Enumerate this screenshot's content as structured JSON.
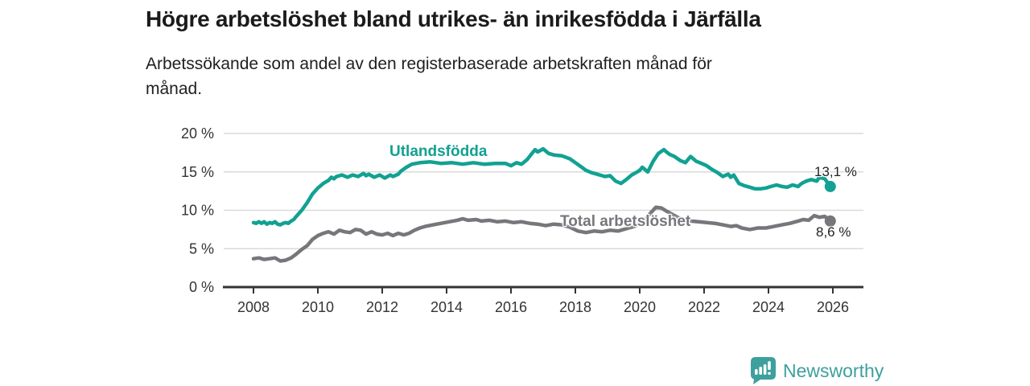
{
  "chart_data": {
    "type": "line",
    "title": "Högre arbetslöshet bland utrikes- än inrikesfödda i Järfälla",
    "subtitle_lines": [
      "Arbetssökande som andel av den registerbaserade arbetskraften månad för",
      "månad."
    ],
    "xlabel": "",
    "ylabel": "",
    "xlim": [
      2007.1,
      2027.0
    ],
    "ylim": [
      0,
      20.6
    ],
    "grid": true,
    "legend_position": "inline-line-labels",
    "x_ticks": [
      {
        "v": 2008,
        "label": "2008"
      },
      {
        "v": 2010,
        "label": "2010"
      },
      {
        "v": 2012,
        "label": "2012"
      },
      {
        "v": 2014,
        "label": "2014"
      },
      {
        "v": 2016,
        "label": "2016"
      },
      {
        "v": 2018,
        "label": "2018"
      },
      {
        "v": 2020,
        "label": "2020"
      },
      {
        "v": 2022,
        "label": "2022"
      },
      {
        "v": 2024,
        "label": "2024"
      },
      {
        "v": 2026,
        "label": "2026"
      }
    ],
    "y_ticks": [
      {
        "v": 0,
        "label": "0 %"
      },
      {
        "v": 5,
        "label": "5 %"
      },
      {
        "v": 10,
        "label": "10 %"
      },
      {
        "v": 15,
        "label": "15 %"
      },
      {
        "v": 20,
        "label": "20 %"
      }
    ],
    "series": [
      {
        "name": "Utlandsfödda",
        "color": "#12a192",
        "end_label": "13,1 %",
        "end_value": 13.1,
        "points": [
          [
            2008.0,
            8.4
          ],
          [
            2008.08,
            8.3
          ],
          [
            2008.17,
            8.5
          ],
          [
            2008.25,
            8.3
          ],
          [
            2008.33,
            8.5
          ],
          [
            2008.42,
            8.2
          ],
          [
            2008.5,
            8.4
          ],
          [
            2008.58,
            8.3
          ],
          [
            2008.67,
            8.5
          ],
          [
            2008.75,
            8.2
          ],
          [
            2008.83,
            8.1
          ],
          [
            2008.92,
            8.3
          ],
          [
            2009.0,
            8.4
          ],
          [
            2009.08,
            8.3
          ],
          [
            2009.17,
            8.6
          ],
          [
            2009.25,
            8.8
          ],
          [
            2009.33,
            9.2
          ],
          [
            2009.5,
            10.0
          ],
          [
            2009.67,
            11.0
          ],
          [
            2009.83,
            12.1
          ],
          [
            2010.0,
            12.9
          ],
          [
            2010.17,
            13.5
          ],
          [
            2010.33,
            13.9
          ],
          [
            2010.42,
            14.3
          ],
          [
            2010.5,
            14.1
          ],
          [
            2010.58,
            14.4
          ],
          [
            2010.75,
            14.6
          ],
          [
            2010.92,
            14.3
          ],
          [
            2011.08,
            14.6
          ],
          [
            2011.25,
            14.4
          ],
          [
            2011.42,
            14.8
          ],
          [
            2011.5,
            14.5
          ],
          [
            2011.58,
            14.7
          ],
          [
            2011.75,
            14.3
          ],
          [
            2011.92,
            14.6
          ],
          [
            2012.08,
            14.2
          ],
          [
            2012.25,
            14.6
          ],
          [
            2012.33,
            14.4
          ],
          [
            2012.5,
            14.7
          ],
          [
            2012.58,
            15.1
          ],
          [
            2012.75,
            15.6
          ],
          [
            2012.92,
            16.0
          ],
          [
            2013.17,
            16.2
          ],
          [
            2013.5,
            16.3
          ],
          [
            2013.83,
            16.1
          ],
          [
            2014.17,
            16.2
          ],
          [
            2014.5,
            16.0
          ],
          [
            2014.83,
            16.2
          ],
          [
            2015.17,
            16.0
          ],
          [
            2015.5,
            16.1
          ],
          [
            2015.83,
            16.1
          ],
          [
            2016.0,
            15.8
          ],
          [
            2016.17,
            16.2
          ],
          [
            2016.33,
            16.0
          ],
          [
            2016.5,
            16.6
          ],
          [
            2016.67,
            17.5
          ],
          [
            2016.75,
            17.9
          ],
          [
            2016.83,
            17.6
          ],
          [
            2017.0,
            18.0
          ],
          [
            2017.17,
            17.4
          ],
          [
            2017.33,
            17.2
          ],
          [
            2017.58,
            17.1
          ],
          [
            2017.83,
            16.7
          ],
          [
            2018.0,
            16.2
          ],
          [
            2018.17,
            15.7
          ],
          [
            2018.33,
            15.2
          ],
          [
            2018.5,
            14.9
          ],
          [
            2018.67,
            14.7
          ],
          [
            2018.92,
            14.4
          ],
          [
            2019.08,
            14.5
          ],
          [
            2019.25,
            13.8
          ],
          [
            2019.42,
            13.5
          ],
          [
            2019.58,
            14.0
          ],
          [
            2019.75,
            14.6
          ],
          [
            2019.92,
            15.0
          ],
          [
            2020.0,
            15.2
          ],
          [
            2020.08,
            15.6
          ],
          [
            2020.25,
            15.0
          ],
          [
            2020.42,
            16.4
          ],
          [
            2020.58,
            17.4
          ],
          [
            2020.75,
            17.9
          ],
          [
            2020.83,
            17.6
          ],
          [
            2020.92,
            17.3
          ],
          [
            2021.08,
            17.0
          ],
          [
            2021.25,
            16.5
          ],
          [
            2021.42,
            16.2
          ],
          [
            2021.58,
            17.0
          ],
          [
            2021.75,
            16.4
          ],
          [
            2021.92,
            16.1
          ],
          [
            2022.08,
            15.8
          ],
          [
            2022.25,
            15.3
          ],
          [
            2022.42,
            14.9
          ],
          [
            2022.58,
            14.4
          ],
          [
            2022.75,
            14.7
          ],
          [
            2022.83,
            14.3
          ],
          [
            2022.92,
            14.6
          ],
          [
            2023.08,
            13.5
          ],
          [
            2023.25,
            13.2
          ],
          [
            2023.42,
            13.0
          ],
          [
            2023.58,
            12.8
          ],
          [
            2023.75,
            12.8
          ],
          [
            2023.92,
            12.9
          ],
          [
            2024.08,
            13.1
          ],
          [
            2024.25,
            13.3
          ],
          [
            2024.42,
            13.1
          ],
          [
            2024.58,
            13.0
          ],
          [
            2024.75,
            13.3
          ],
          [
            2024.92,
            13.1
          ],
          [
            2025.0,
            13.4
          ],
          [
            2025.08,
            13.6
          ],
          [
            2025.17,
            13.8
          ],
          [
            2025.33,
            14.0
          ],
          [
            2025.5,
            13.8
          ],
          [
            2025.58,
            14.3
          ],
          [
            2025.75,
            14.1
          ],
          [
            2025.92,
            13.1
          ]
        ]
      },
      {
        "name": "Total arbetslöshet",
        "color": "#76777b",
        "end_label": "8,6 %",
        "end_value": 8.6,
        "points": [
          [
            2008.0,
            3.7
          ],
          [
            2008.17,
            3.8
          ],
          [
            2008.33,
            3.6
          ],
          [
            2008.5,
            3.7
          ],
          [
            2008.67,
            3.8
          ],
          [
            2008.83,
            3.4
          ],
          [
            2009.0,
            3.5
          ],
          [
            2009.17,
            3.8
          ],
          [
            2009.33,
            4.3
          ],
          [
            2009.5,
            4.9
          ],
          [
            2009.67,
            5.4
          ],
          [
            2009.83,
            6.2
          ],
          [
            2010.0,
            6.7
          ],
          [
            2010.17,
            7.0
          ],
          [
            2010.33,
            7.2
          ],
          [
            2010.5,
            6.9
          ],
          [
            2010.67,
            7.4
          ],
          [
            2010.83,
            7.2
          ],
          [
            2011.0,
            7.1
          ],
          [
            2011.17,
            7.5
          ],
          [
            2011.33,
            7.4
          ],
          [
            2011.5,
            6.9
          ],
          [
            2011.67,
            7.2
          ],
          [
            2011.83,
            6.9
          ],
          [
            2012.0,
            6.8
          ],
          [
            2012.17,
            7.0
          ],
          [
            2012.33,
            6.7
          ],
          [
            2012.5,
            7.0
          ],
          [
            2012.67,
            6.8
          ],
          [
            2012.83,
            7.0
          ],
          [
            2013.0,
            7.4
          ],
          [
            2013.17,
            7.7
          ],
          [
            2013.33,
            7.9
          ],
          [
            2013.58,
            8.1
          ],
          [
            2013.83,
            8.3
          ],
          [
            2014.08,
            8.5
          ],
          [
            2014.33,
            8.7
          ],
          [
            2014.5,
            8.9
          ],
          [
            2014.67,
            8.7
          ],
          [
            2014.92,
            8.8
          ],
          [
            2015.08,
            8.6
          ],
          [
            2015.33,
            8.7
          ],
          [
            2015.58,
            8.5
          ],
          [
            2015.83,
            8.6
          ],
          [
            2016.08,
            8.4
          ],
          [
            2016.33,
            8.5
          ],
          [
            2016.58,
            8.3
          ],
          [
            2016.83,
            8.2
          ],
          [
            2017.08,
            8.0
          ],
          [
            2017.33,
            8.2
          ],
          [
            2017.58,
            8.1
          ],
          [
            2017.83,
            7.8
          ],
          [
            2018.08,
            7.3
          ],
          [
            2018.33,
            7.1
          ],
          [
            2018.58,
            7.3
          ],
          [
            2018.83,
            7.2
          ],
          [
            2019.08,
            7.4
          ],
          [
            2019.33,
            7.3
          ],
          [
            2019.58,
            7.6
          ],
          [
            2019.83,
            7.9
          ],
          [
            2020.0,
            8.3
          ],
          [
            2020.17,
            8.8
          ],
          [
            2020.33,
            9.6
          ],
          [
            2020.5,
            10.4
          ],
          [
            2020.67,
            10.3
          ],
          [
            2020.83,
            9.9
          ],
          [
            2021.0,
            9.5
          ],
          [
            2021.17,
            9.1
          ],
          [
            2021.33,
            8.8
          ],
          [
            2021.58,
            8.6
          ],
          [
            2021.83,
            8.5
          ],
          [
            2022.08,
            8.4
          ],
          [
            2022.33,
            8.3
          ],
          [
            2022.58,
            8.1
          ],
          [
            2022.83,
            7.9
          ],
          [
            2023.0,
            8.0
          ],
          [
            2023.17,
            7.7
          ],
          [
            2023.42,
            7.5
          ],
          [
            2023.67,
            7.7
          ],
          [
            2023.92,
            7.7
          ],
          [
            2024.17,
            7.9
          ],
          [
            2024.42,
            8.1
          ],
          [
            2024.67,
            8.3
          ],
          [
            2024.92,
            8.6
          ],
          [
            2025.08,
            8.8
          ],
          [
            2025.25,
            8.7
          ],
          [
            2025.42,
            9.3
          ],
          [
            2025.58,
            9.1
          ],
          [
            2025.75,
            9.2
          ],
          [
            2025.92,
            8.6
          ]
        ]
      }
    ]
  },
  "footer": {
    "brand": "Newsworthy"
  },
  "colors": {
    "accent_teal": "#12a192",
    "series_gray": "#76777b",
    "axis": "#333333",
    "grid": "#dadada",
    "logo_teal": "#3da09d",
    "text": "#1b1b1b"
  }
}
